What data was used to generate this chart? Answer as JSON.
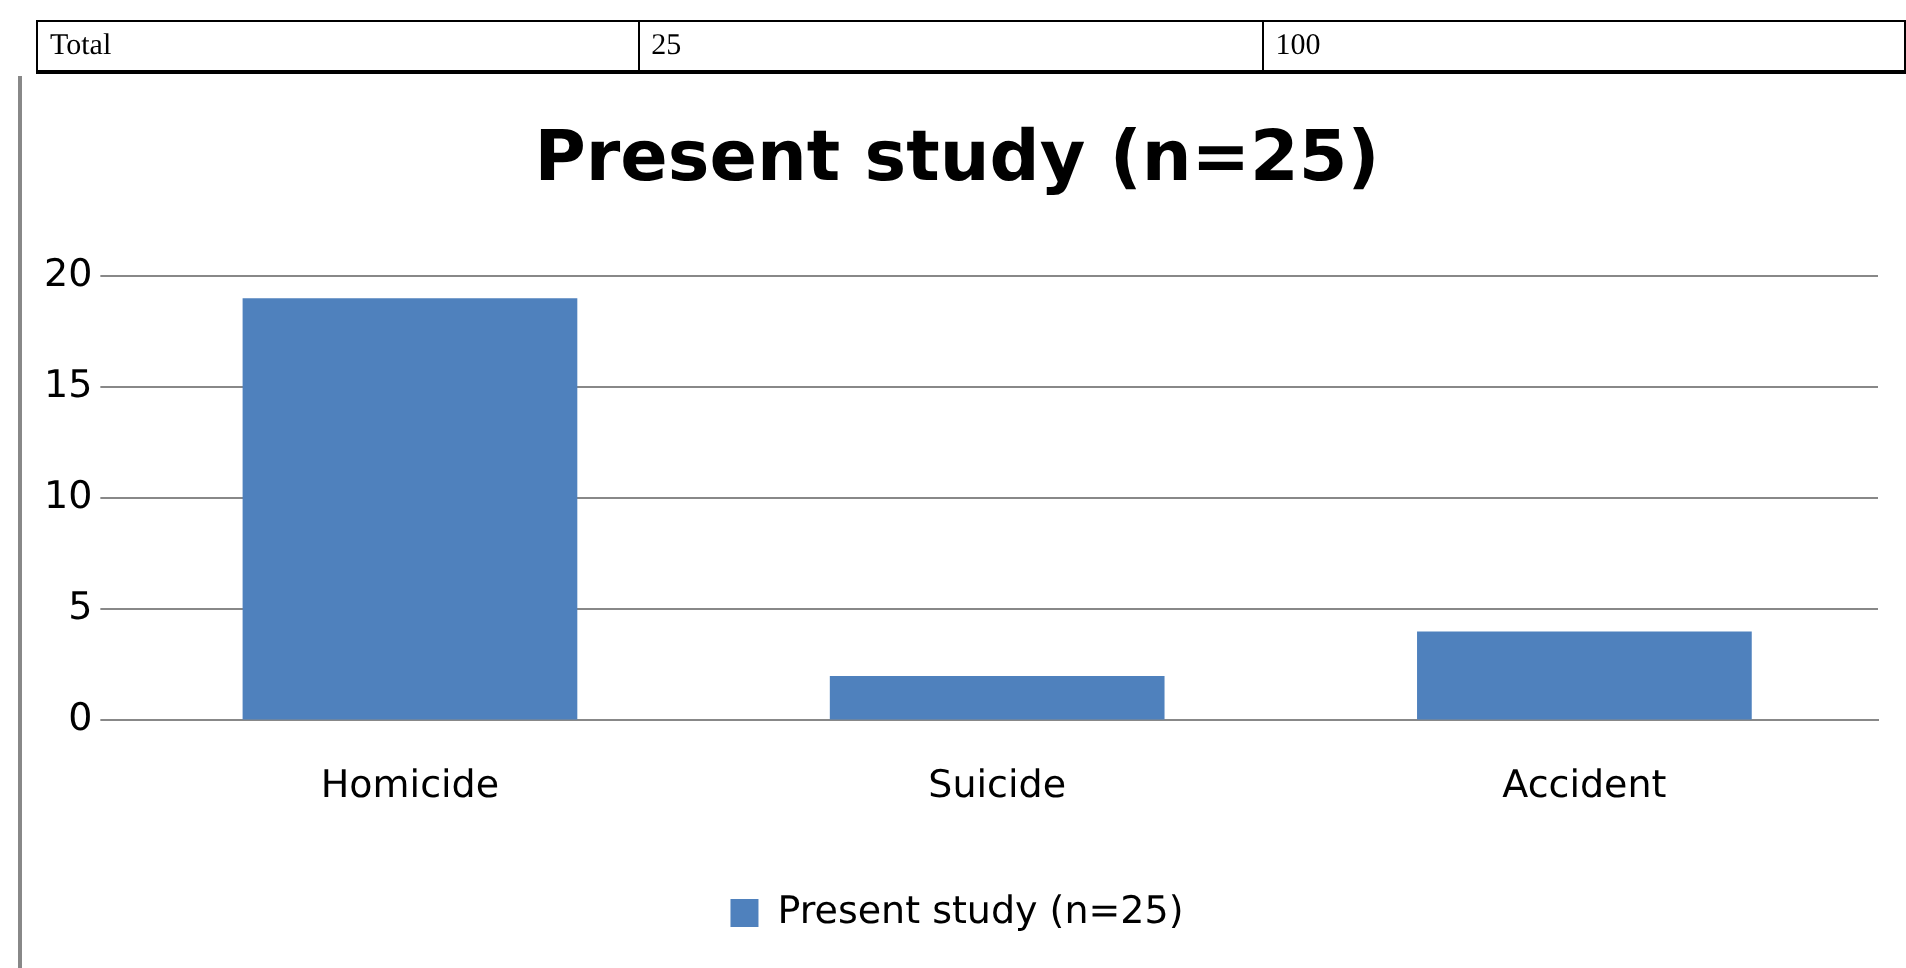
{
  "chart_data": {
    "type": "bar",
    "title": "Present study (n=25)",
    "categories": [
      "Homicide",
      "Suicide",
      "Accident"
    ],
    "series": [
      {
        "name": "Present study (n=25)",
        "color": "#4f81bd",
        "values": [
          19,
          2,
          4
        ]
      }
    ],
    "ylim": [
      0,
      20
    ],
    "yticks": [
      0,
      5,
      10,
      15,
      20
    ],
    "grid": "y",
    "legend": "bottom",
    "annotations": [
      "Total",
      "25",
      "100"
    ]
  }
}
